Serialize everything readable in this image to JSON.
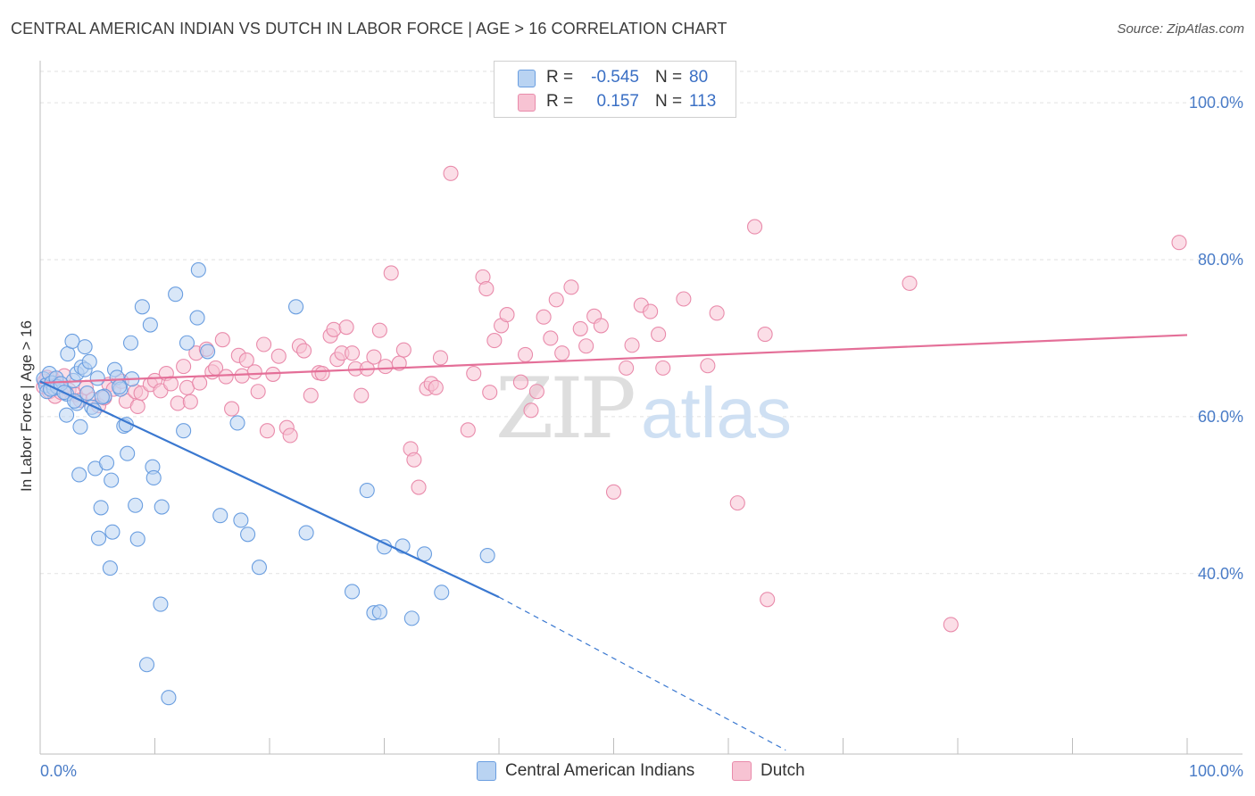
{
  "title": "CENTRAL AMERICAN INDIAN VS DUTCH IN LABOR FORCE | AGE > 16 CORRELATION CHART",
  "source": "Source: ZipAtlas.com",
  "watermark": {
    "zip": "ZIP",
    "atlas": "atlas"
  },
  "colors": {
    "blue_fill": "#b9d3f2",
    "blue_stroke": "#6a9ee0",
    "blue_line": "#3a78d0",
    "pink_fill": "#f7c3d3",
    "pink_stroke": "#e98bab",
    "pink_line": "#e46f98",
    "tick_color": "#4a7cc7"
  },
  "legend": {
    "rows": [
      {
        "r_label": "R =",
        "r_value": "-0.545",
        "n_label": "N =",
        "n_value": "80",
        "color": "#b9d3f2",
        "border": "#6a9ee0"
      },
      {
        "r_label": "R =",
        "r_value": "0.157",
        "n_label": "N =",
        "n_value": "113",
        "color": "#f7c3d3",
        "border": "#e98bab"
      }
    ]
  },
  "bottom_legend": [
    {
      "label": "Central American Indians",
      "color": "#b9d3f2",
      "border": "#6a9ee0"
    },
    {
      "label": "Dutch",
      "color": "#f7c3d3",
      "border": "#e98bab"
    }
  ],
  "chart_data": {
    "type": "scatter",
    "title": "CENTRAL AMERICAN INDIAN VS DUTCH IN LABOR FORCE | AGE > 16 CORRELATION CHART",
    "ylabel": "In Labor Force | Age > 16",
    "xlabel": "",
    "xlim": [
      0,
      100
    ],
    "ylim": [
      17,
      104
    ],
    "x_tick_labels": [
      "0.0%",
      "100.0%"
    ],
    "y_ticks": [
      40,
      60,
      80,
      100
    ],
    "y_tick_labels": [
      "40.0%",
      "60.0%",
      "80.0%",
      "100.0%"
    ],
    "grid": "horizontal dashed",
    "legend_position": "top-center",
    "series": [
      {
        "name": "Central American Indians",
        "r": -0.545,
        "n": 80,
        "trend": {
          "x_start": 0,
          "y_start": 64.5,
          "x_solid_end": 40,
          "y_solid_end": 37.0,
          "x_dash_end": 65,
          "y_dash_end": 17.5
        },
        "points": [
          [
            0.3,
            64.8
          ],
          [
            0.5,
            64.0
          ],
          [
            0.6,
            63.2
          ],
          [
            0.8,
            65.5
          ],
          [
            1.0,
            64.3
          ],
          [
            1.2,
            63.6
          ],
          [
            1.4,
            64.9
          ],
          [
            1.5,
            63.8
          ],
          [
            2.3,
            60.2
          ],
          [
            2.3,
            62.9
          ],
          [
            2.4,
            68.0
          ],
          [
            2.8,
            69.6
          ],
          [
            2.9,
            64.6
          ],
          [
            3.2,
            65.5
          ],
          [
            3.2,
            61.7
          ],
          [
            3.4,
            52.6
          ],
          [
            3.5,
            58.7
          ],
          [
            3.6,
            66.3
          ],
          [
            3.9,
            68.9
          ],
          [
            3.9,
            66.0
          ],
          [
            4.1,
            63.0
          ],
          [
            4.3,
            67.0
          ],
          [
            4.5,
            61.2
          ],
          [
            4.7,
            60.8
          ],
          [
            4.8,
            53.4
          ],
          [
            5.0,
            64.9
          ],
          [
            5.1,
            44.5
          ],
          [
            5.3,
            48.4
          ],
          [
            5.6,
            62.6
          ],
          [
            5.8,
            54.1
          ],
          [
            6.1,
            40.7
          ],
          [
            6.2,
            51.9
          ],
          [
            6.3,
            45.3
          ],
          [
            6.5,
            66.0
          ],
          [
            6.7,
            65.0
          ],
          [
            7.0,
            63.5
          ],
          [
            7.3,
            58.8
          ],
          [
            7.5,
            59.0
          ],
          [
            7.6,
            55.3
          ],
          [
            7.9,
            69.4
          ],
          [
            8.0,
            64.8
          ],
          [
            8.3,
            48.7
          ],
          [
            8.5,
            44.4
          ],
          [
            8.9,
            74.0
          ],
          [
            9.3,
            28.4
          ],
          [
            9.6,
            71.7
          ],
          [
            9.8,
            53.6
          ],
          [
            9.9,
            52.2
          ],
          [
            10.5,
            36.1
          ],
          [
            10.6,
            48.5
          ],
          [
            11.2,
            24.2
          ],
          [
            11.8,
            75.6
          ],
          [
            12.5,
            58.2
          ],
          [
            12.8,
            69.4
          ],
          [
            13.7,
            72.6
          ],
          [
            13.8,
            78.7
          ],
          [
            14.6,
            68.3
          ],
          [
            15.7,
            47.4
          ],
          [
            17.2,
            59.2
          ],
          [
            17.5,
            46.8
          ],
          [
            18.1,
            45.0
          ],
          [
            19.1,
            40.8
          ],
          [
            22.3,
            74.0
          ],
          [
            23.2,
            45.2
          ],
          [
            27.2,
            37.7
          ],
          [
            28.5,
            50.6
          ],
          [
            29.1,
            35.0
          ],
          [
            29.6,
            35.1
          ],
          [
            30.0,
            43.4
          ],
          [
            31.6,
            43.5
          ],
          [
            32.4,
            34.3
          ],
          [
            33.5,
            42.5
          ],
          [
            35.0,
            37.6
          ],
          [
            39.0,
            42.3
          ],
          [
            0.9,
            63.5
          ],
          [
            1.8,
            64.2
          ],
          [
            2.1,
            63.1
          ],
          [
            6.9,
            63.8
          ],
          [
            5.4,
            62.5
          ],
          [
            3.0,
            62.0
          ]
        ]
      },
      {
        "name": "Dutch",
        "r": 0.157,
        "n": 113,
        "trend": {
          "x_start": 0,
          "y_start": 64.3,
          "x_end": 100,
          "y_end": 70.4
        },
        "points": [
          [
            0.3,
            63.8
          ],
          [
            0.4,
            64.5
          ],
          [
            0.6,
            65.0
          ],
          [
            0.8,
            63.2
          ],
          [
            1.1,
            64.8
          ],
          [
            1.3,
            62.6
          ],
          [
            1.5,
            64.2
          ],
          [
            1.8,
            63.1
          ],
          [
            2.1,
            65.2
          ],
          [
            2.5,
            63.4
          ],
          [
            3.1,
            62.8
          ],
          [
            3.5,
            62.1
          ],
          [
            4.0,
            63.7
          ],
          [
            4.6,
            62.2
          ],
          [
            5.1,
            61.4
          ],
          [
            5.6,
            62.4
          ],
          [
            6.0,
            64.1
          ],
          [
            6.4,
            63.5
          ],
          [
            7.1,
            64.5
          ],
          [
            7.5,
            62.0
          ],
          [
            8.3,
            63.2
          ],
          [
            8.5,
            61.3
          ],
          [
            8.8,
            63.0
          ],
          [
            9.6,
            64.1
          ],
          [
            10.0,
            64.6
          ],
          [
            10.5,
            63.3
          ],
          [
            11.0,
            65.5
          ],
          [
            11.4,
            64.2
          ],
          [
            12.0,
            61.7
          ],
          [
            12.5,
            66.4
          ],
          [
            12.8,
            63.7
          ],
          [
            13.1,
            61.9
          ],
          [
            13.6,
            68.1
          ],
          [
            13.9,
            64.3
          ],
          [
            14.5,
            68.6
          ],
          [
            15.0,
            65.7
          ],
          [
            15.3,
            66.2
          ],
          [
            15.9,
            69.8
          ],
          [
            16.2,
            65.1
          ],
          [
            16.7,
            61.0
          ],
          [
            17.3,
            67.8
          ],
          [
            17.6,
            65.2
          ],
          [
            18.0,
            67.2
          ],
          [
            18.7,
            65.7
          ],
          [
            19.0,
            63.2
          ],
          [
            19.5,
            69.2
          ],
          [
            19.8,
            58.2
          ],
          [
            20.3,
            65.4
          ],
          [
            20.8,
            67.7
          ],
          [
            21.5,
            58.6
          ],
          [
            21.8,
            57.6
          ],
          [
            22.6,
            69.0
          ],
          [
            23.0,
            68.4
          ],
          [
            23.6,
            62.7
          ],
          [
            24.3,
            65.6
          ],
          [
            24.6,
            65.5
          ],
          [
            25.3,
            70.3
          ],
          [
            25.6,
            71.1
          ],
          [
            25.9,
            67.3
          ],
          [
            26.3,
            68.1
          ],
          [
            26.7,
            71.4
          ],
          [
            27.2,
            68.1
          ],
          [
            27.5,
            66.1
          ],
          [
            28.0,
            62.7
          ],
          [
            28.5,
            66.1
          ],
          [
            29.1,
            67.6
          ],
          [
            29.6,
            71.0
          ],
          [
            30.1,
            66.4
          ],
          [
            30.6,
            78.3
          ],
          [
            31.3,
            66.8
          ],
          [
            31.7,
            68.5
          ],
          [
            32.3,
            55.9
          ],
          [
            32.6,
            54.5
          ],
          [
            33.0,
            51.0
          ],
          [
            33.7,
            63.6
          ],
          [
            34.1,
            64.2
          ],
          [
            34.5,
            63.7
          ],
          [
            34.9,
            67.5
          ],
          [
            35.8,
            91.0
          ],
          [
            37.3,
            58.3
          ],
          [
            37.8,
            65.5
          ],
          [
            38.6,
            77.8
          ],
          [
            38.9,
            76.3
          ],
          [
            39.2,
            63.1
          ],
          [
            39.6,
            69.7
          ],
          [
            40.2,
            71.6
          ],
          [
            40.7,
            73.0
          ],
          [
            41.9,
            64.4
          ],
          [
            42.3,
            67.9
          ],
          [
            42.8,
            60.8
          ],
          [
            43.3,
            63.2
          ],
          [
            43.9,
            72.7
          ],
          [
            44.5,
            70.0
          ],
          [
            45.0,
            74.9
          ],
          [
            45.5,
            68.1
          ],
          [
            46.3,
            76.5
          ],
          [
            47.1,
            71.2
          ],
          [
            47.6,
            69.0
          ],
          [
            48.3,
            72.8
          ],
          [
            48.9,
            71.6
          ],
          [
            50.0,
            50.4
          ],
          [
            51.1,
            66.2
          ],
          [
            51.6,
            69.1
          ],
          [
            52.4,
            74.2
          ],
          [
            53.2,
            73.4
          ],
          [
            53.9,
            70.5
          ],
          [
            54.3,
            66.2
          ],
          [
            56.1,
            75.0
          ],
          [
            58.2,
            66.5
          ],
          [
            59.0,
            73.2
          ],
          [
            60.8,
            49.0
          ],
          [
            62.3,
            84.2
          ],
          [
            63.2,
            70.5
          ],
          [
            63.4,
            36.7
          ],
          [
            75.8,
            77.0
          ],
          [
            79.4,
            33.5
          ],
          [
            99.3,
            82.2
          ]
        ]
      }
    ]
  }
}
